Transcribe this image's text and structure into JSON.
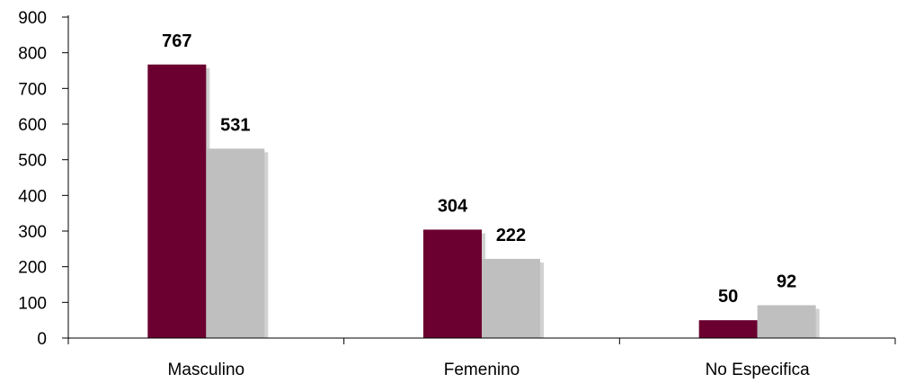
{
  "chart_data": {
    "type": "bar",
    "categories": [
      "Masculino",
      "Femenino",
      "No Especifica"
    ],
    "series": [
      {
        "values": [
          767,
          304,
          50
        ],
        "color": "#6b0030"
      },
      {
        "values": [
          531,
          222,
          92
        ],
        "color": "#bfbfbf"
      }
    ],
    "ylim": [
      0,
      900
    ],
    "yticks": [
      0,
      100,
      200,
      300,
      400,
      500,
      600,
      700,
      800,
      900
    ],
    "grid": false,
    "legend": "none",
    "title": "",
    "xlabel": "",
    "ylabel": ""
  }
}
